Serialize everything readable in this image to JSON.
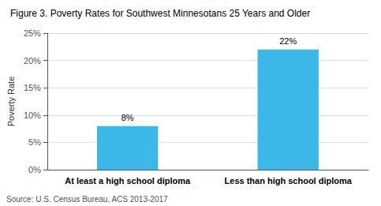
{
  "chart_data": {
    "type": "bar",
    "title": "Figure 3. Poverty Rates for Southwest Minnesotans 25 Years and Older",
    "categories": [
      "At least a high school diploma",
      "Less than high school diploma"
    ],
    "values": [
      8,
      22
    ],
    "value_labels": [
      "8%",
      "22%"
    ],
    "data_labels": true,
    "color": "#3bb8e8",
    "ylabel": "Poverty Rate",
    "ylim": [
      0,
      25
    ],
    "yticks": [
      {
        "value": 0,
        "label": "0%"
      },
      {
        "value": 5,
        "label": "5%"
      },
      {
        "value": 10,
        "label": "10%"
      },
      {
        "value": 15,
        "label": "15%"
      },
      {
        "value": 20,
        "label": "20%"
      },
      {
        "value": 25,
        "label": "25%"
      }
    ],
    "grid": true,
    "annotations": [
      "Source: U.S. Census Bureau, ACS 2013-2017"
    ]
  }
}
